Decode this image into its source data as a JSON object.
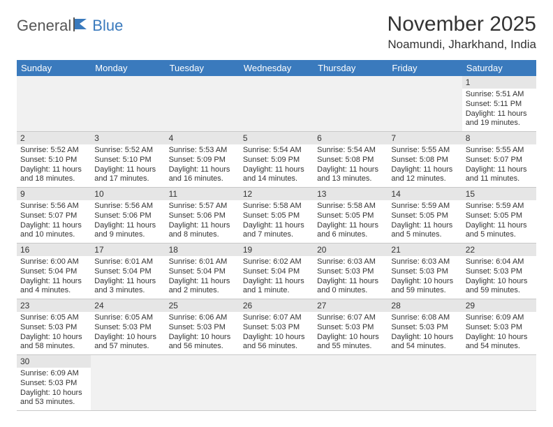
{
  "logo": {
    "general": "General",
    "blue": "Blue"
  },
  "title": "November 2025",
  "location": "Noamundi, Jharkhand, India",
  "colors": {
    "header_bg": "#3a7abd",
    "header_text": "#ffffff",
    "daynum_bg": "#e6e6e6",
    "empty_bg": "#f1f1f1",
    "cell_border": "#c8c8c8",
    "text": "#333333"
  },
  "weekdays": [
    "Sunday",
    "Monday",
    "Tuesday",
    "Wednesday",
    "Thursday",
    "Friday",
    "Saturday"
  ],
  "weeks": [
    [
      null,
      null,
      null,
      null,
      null,
      null,
      {
        "n": "1",
        "sr": "Sunrise: 5:51 AM",
        "ss": "Sunset: 5:11 PM",
        "dl": "Daylight: 11 hours and 19 minutes."
      }
    ],
    [
      {
        "n": "2",
        "sr": "Sunrise: 5:52 AM",
        "ss": "Sunset: 5:10 PM",
        "dl": "Daylight: 11 hours and 18 minutes."
      },
      {
        "n": "3",
        "sr": "Sunrise: 5:52 AM",
        "ss": "Sunset: 5:10 PM",
        "dl": "Daylight: 11 hours and 17 minutes."
      },
      {
        "n": "4",
        "sr": "Sunrise: 5:53 AM",
        "ss": "Sunset: 5:09 PM",
        "dl": "Daylight: 11 hours and 16 minutes."
      },
      {
        "n": "5",
        "sr": "Sunrise: 5:54 AM",
        "ss": "Sunset: 5:09 PM",
        "dl": "Daylight: 11 hours and 14 minutes."
      },
      {
        "n": "6",
        "sr": "Sunrise: 5:54 AM",
        "ss": "Sunset: 5:08 PM",
        "dl": "Daylight: 11 hours and 13 minutes."
      },
      {
        "n": "7",
        "sr": "Sunrise: 5:55 AM",
        "ss": "Sunset: 5:08 PM",
        "dl": "Daylight: 11 hours and 12 minutes."
      },
      {
        "n": "8",
        "sr": "Sunrise: 5:55 AM",
        "ss": "Sunset: 5:07 PM",
        "dl": "Daylight: 11 hours and 11 minutes."
      }
    ],
    [
      {
        "n": "9",
        "sr": "Sunrise: 5:56 AM",
        "ss": "Sunset: 5:07 PM",
        "dl": "Daylight: 11 hours and 10 minutes."
      },
      {
        "n": "10",
        "sr": "Sunrise: 5:56 AM",
        "ss": "Sunset: 5:06 PM",
        "dl": "Daylight: 11 hours and 9 minutes."
      },
      {
        "n": "11",
        "sr": "Sunrise: 5:57 AM",
        "ss": "Sunset: 5:06 PM",
        "dl": "Daylight: 11 hours and 8 minutes."
      },
      {
        "n": "12",
        "sr": "Sunrise: 5:58 AM",
        "ss": "Sunset: 5:05 PM",
        "dl": "Daylight: 11 hours and 7 minutes."
      },
      {
        "n": "13",
        "sr": "Sunrise: 5:58 AM",
        "ss": "Sunset: 5:05 PM",
        "dl": "Daylight: 11 hours and 6 minutes."
      },
      {
        "n": "14",
        "sr": "Sunrise: 5:59 AM",
        "ss": "Sunset: 5:05 PM",
        "dl": "Daylight: 11 hours and 5 minutes."
      },
      {
        "n": "15",
        "sr": "Sunrise: 5:59 AM",
        "ss": "Sunset: 5:05 PM",
        "dl": "Daylight: 11 hours and 5 minutes."
      }
    ],
    [
      {
        "n": "16",
        "sr": "Sunrise: 6:00 AM",
        "ss": "Sunset: 5:04 PM",
        "dl": "Daylight: 11 hours and 4 minutes."
      },
      {
        "n": "17",
        "sr": "Sunrise: 6:01 AM",
        "ss": "Sunset: 5:04 PM",
        "dl": "Daylight: 11 hours and 3 minutes."
      },
      {
        "n": "18",
        "sr": "Sunrise: 6:01 AM",
        "ss": "Sunset: 5:04 PM",
        "dl": "Daylight: 11 hours and 2 minutes."
      },
      {
        "n": "19",
        "sr": "Sunrise: 6:02 AM",
        "ss": "Sunset: 5:04 PM",
        "dl": "Daylight: 11 hours and 1 minute."
      },
      {
        "n": "20",
        "sr": "Sunrise: 6:03 AM",
        "ss": "Sunset: 5:03 PM",
        "dl": "Daylight: 11 hours and 0 minutes."
      },
      {
        "n": "21",
        "sr": "Sunrise: 6:03 AM",
        "ss": "Sunset: 5:03 PM",
        "dl": "Daylight: 10 hours and 59 minutes."
      },
      {
        "n": "22",
        "sr": "Sunrise: 6:04 AM",
        "ss": "Sunset: 5:03 PM",
        "dl": "Daylight: 10 hours and 59 minutes."
      }
    ],
    [
      {
        "n": "23",
        "sr": "Sunrise: 6:05 AM",
        "ss": "Sunset: 5:03 PM",
        "dl": "Daylight: 10 hours and 58 minutes."
      },
      {
        "n": "24",
        "sr": "Sunrise: 6:05 AM",
        "ss": "Sunset: 5:03 PM",
        "dl": "Daylight: 10 hours and 57 minutes."
      },
      {
        "n": "25",
        "sr": "Sunrise: 6:06 AM",
        "ss": "Sunset: 5:03 PM",
        "dl": "Daylight: 10 hours and 56 minutes."
      },
      {
        "n": "26",
        "sr": "Sunrise: 6:07 AM",
        "ss": "Sunset: 5:03 PM",
        "dl": "Daylight: 10 hours and 56 minutes."
      },
      {
        "n": "27",
        "sr": "Sunrise: 6:07 AM",
        "ss": "Sunset: 5:03 PM",
        "dl": "Daylight: 10 hours and 55 minutes."
      },
      {
        "n": "28",
        "sr": "Sunrise: 6:08 AM",
        "ss": "Sunset: 5:03 PM",
        "dl": "Daylight: 10 hours and 54 minutes."
      },
      {
        "n": "29",
        "sr": "Sunrise: 6:09 AM",
        "ss": "Sunset: 5:03 PM",
        "dl": "Daylight: 10 hours and 54 minutes."
      }
    ],
    [
      {
        "n": "30",
        "sr": "Sunrise: 6:09 AM",
        "ss": "Sunset: 5:03 PM",
        "dl": "Daylight: 10 hours and 53 minutes."
      },
      null,
      null,
      null,
      null,
      null,
      null
    ]
  ]
}
